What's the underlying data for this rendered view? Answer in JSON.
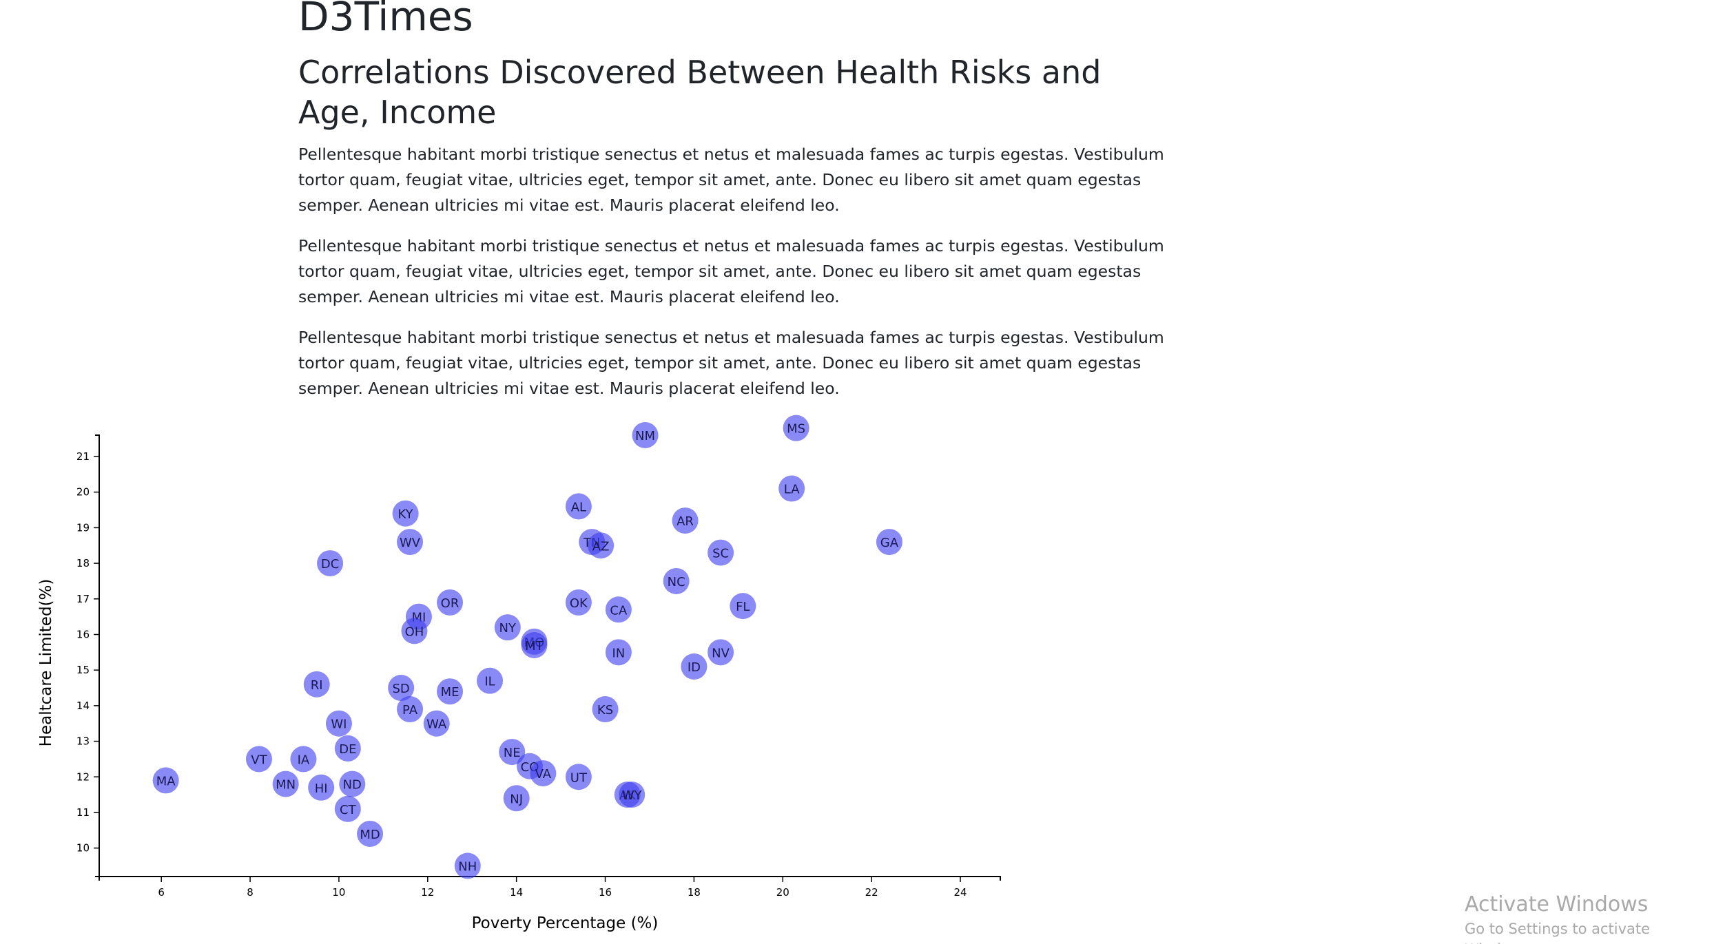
{
  "header": {
    "site_title": "D3Times",
    "headline": "Correlations Discovered Between Health Risks and Age, Income"
  },
  "article": {
    "paragraphs": [
      "Pellentesque habitant morbi tristique senectus et netus et malesuada fames ac turpis egestas. Vestibulum tortor quam, feugiat vitae, ultricies eget, tempor sit amet, ante. Donec eu libero sit amet quam egestas semper. Aenean ultricies mi vitae est. Mauris placerat eleifend leo.",
      "Pellentesque habitant morbi tristique senectus et netus et malesuada fames ac turpis egestas. Vestibulum tortor quam, feugiat vitae, ultricies eget, tempor sit amet, ante. Donec eu libero sit amet quam egestas semper. Aenean ultricies mi vitae est. Mauris placerat eleifend leo.",
      "Pellentesque habitant morbi tristique senectus et netus et malesuada fames ac turpis egestas. Vestibulum tortor quam, feugiat vitae, ultricies eget, tempor sit amet, ante. Donec eu libero sit amet quam egestas semper. Aenean ultricies mi vitae est. Mauris placerat eleifend leo."
    ]
  },
  "chart_data": {
    "type": "scatter",
    "title": "",
    "xlabel": "Poverty Percentage (%)",
    "ylabel": "Healtcare Limited(%)",
    "xlim": [
      4.6,
      24.9
    ],
    "ylim": [
      9.2,
      21.6
    ],
    "xticks": [
      6,
      8,
      10,
      12,
      14,
      16,
      18,
      20,
      22,
      24
    ],
    "yticks": [
      10,
      11,
      12,
      13,
      14,
      15,
      16,
      17,
      18,
      19,
      20,
      21
    ],
    "grid": false,
    "marker_color": "#3c3cf0",
    "points": [
      {
        "label": "MA",
        "x": 6.1,
        "y": 11.9
      },
      {
        "label": "VT",
        "x": 8.2,
        "y": 12.5
      },
      {
        "label": "IA",
        "x": 9.2,
        "y": 12.5
      },
      {
        "label": "MN",
        "x": 8.8,
        "y": 11.8
      },
      {
        "label": "HI",
        "x": 9.6,
        "y": 11.7
      },
      {
        "label": "RI",
        "x": 9.5,
        "y": 14.6
      },
      {
        "label": "DC",
        "x": 9.8,
        "y": 18.0
      },
      {
        "label": "WI",
        "x": 10.0,
        "y": 13.5
      },
      {
        "label": "DE",
        "x": 10.2,
        "y": 12.8
      },
      {
        "label": "ND",
        "x": 10.3,
        "y": 11.8
      },
      {
        "label": "CT",
        "x": 10.2,
        "y": 11.1
      },
      {
        "label": "MD",
        "x": 10.7,
        "y": 10.4
      },
      {
        "label": "KY",
        "x": 11.5,
        "y": 19.4
      },
      {
        "label": "WV",
        "x": 11.6,
        "y": 18.6
      },
      {
        "label": "MI",
        "x": 11.8,
        "y": 16.5
      },
      {
        "label": "OH",
        "x": 11.7,
        "y": 16.1
      },
      {
        "label": "SD",
        "x": 11.4,
        "y": 14.5
      },
      {
        "label": "PA",
        "x": 11.6,
        "y": 13.9
      },
      {
        "label": "OR",
        "x": 12.5,
        "y": 16.9
      },
      {
        "label": "ME",
        "x": 12.5,
        "y": 14.4
      },
      {
        "label": "WA",
        "x": 12.2,
        "y": 13.5
      },
      {
        "label": "NH",
        "x": 12.9,
        "y": 9.5
      },
      {
        "label": "IL",
        "x": 13.4,
        "y": 14.7
      },
      {
        "label": "NY",
        "x": 13.8,
        "y": 16.2
      },
      {
        "label": "NE",
        "x": 13.9,
        "y": 12.7
      },
      {
        "label": "NJ",
        "x": 14.0,
        "y": 11.4
      },
      {
        "label": "MO",
        "x": 14.4,
        "y": 15.8
      },
      {
        "label": "MT",
        "x": 14.4,
        "y": 15.7
      },
      {
        "label": "CO",
        "x": 14.3,
        "y": 12.3
      },
      {
        "label": "VA",
        "x": 14.6,
        "y": 12.1
      },
      {
        "label": "AL",
        "x": 15.4,
        "y": 19.6
      },
      {
        "label": "TN",
        "x": 15.7,
        "y": 18.6
      },
      {
        "label": "AZ",
        "x": 15.9,
        "y": 18.5
      },
      {
        "label": "OK",
        "x": 15.4,
        "y": 16.9
      },
      {
        "label": "UT",
        "x": 15.4,
        "y": 12.0
      },
      {
        "label": "CA",
        "x": 16.3,
        "y": 16.7
      },
      {
        "label": "IN",
        "x": 16.3,
        "y": 15.5
      },
      {
        "label": "KS",
        "x": 16.0,
        "y": 13.9
      },
      {
        "label": "AK",
        "x": 16.5,
        "y": 11.5
      },
      {
        "label": "WY",
        "x": 16.6,
        "y": 11.5
      },
      {
        "label": "NM",
        "x": 16.9,
        "y": 21.6
      },
      {
        "label": "NC",
        "x": 17.6,
        "y": 17.5
      },
      {
        "label": "AR",
        "x": 17.8,
        "y": 19.2
      },
      {
        "label": "ID",
        "x": 18.0,
        "y": 15.1
      },
      {
        "label": "SC",
        "x": 18.6,
        "y": 18.3
      },
      {
        "label": "NV",
        "x": 18.6,
        "y": 15.5
      },
      {
        "label": "FL",
        "x": 19.1,
        "y": 16.8
      },
      {
        "label": "LA",
        "x": 20.2,
        "y": 20.1
      },
      {
        "label": "MS",
        "x": 20.3,
        "y": 21.8
      },
      {
        "label": "GA",
        "x": 22.4,
        "y": 18.6
      }
    ]
  },
  "watermark": {
    "title": "Activate Windows",
    "subtitle": "Go to Settings to activate Windows."
  }
}
